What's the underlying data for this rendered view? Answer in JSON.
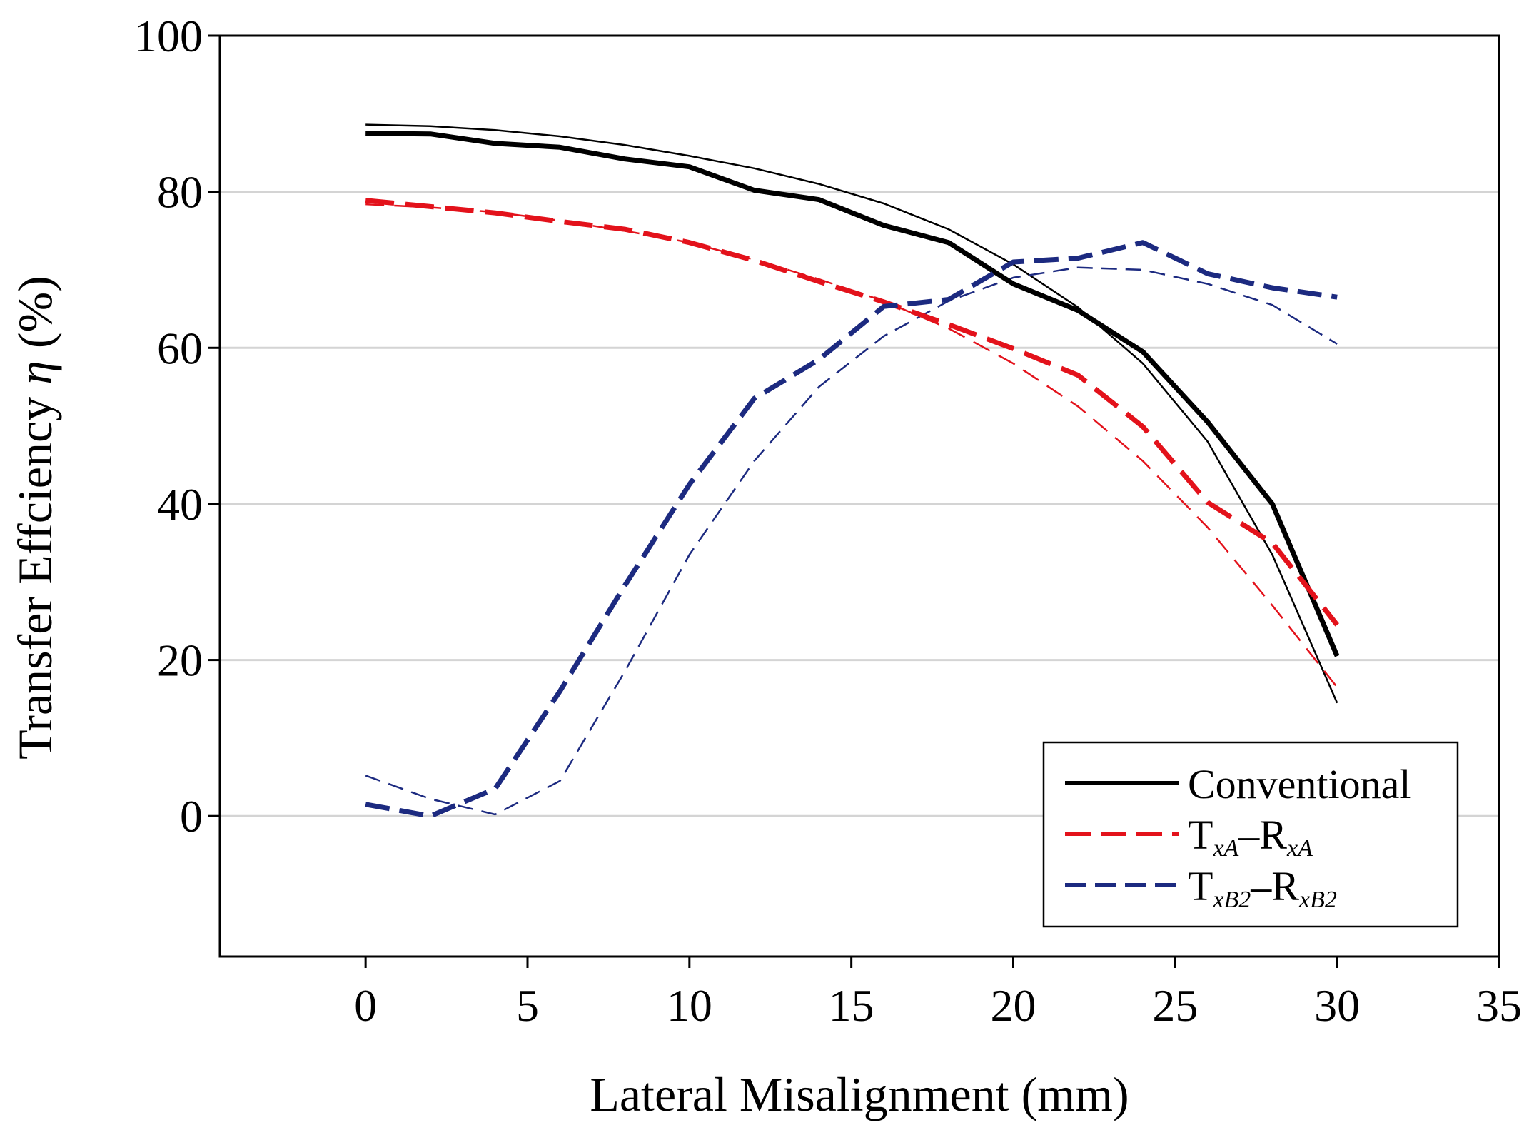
{
  "chart_data": {
    "type": "line",
    "title": "",
    "xlabel": "Lateral Misalignment (mm)",
    "ylabel_main": "Transfer Effciency ",
    "ylabel_symbol": "η",
    "ylabel_unit": " (%)",
    "xlim": [
      -4.5,
      35
    ],
    "ylim": [
      -18,
      100
    ],
    "xticks": [
      0,
      5,
      10,
      15,
      20,
      25,
      30,
      35
    ],
    "yticks": [
      0,
      20,
      40,
      60,
      80,
      100
    ],
    "grid": "horizontal",
    "legend_position": "bottom-right",
    "x": [
      0,
      2,
      4,
      6,
      8,
      10,
      12,
      14,
      16,
      18,
      20,
      22,
      24,
      26,
      28,
      30
    ],
    "series": [
      {
        "name": "Conventional",
        "legend": {
          "main": "Conventional"
        },
        "color": "#000000",
        "style": "solid",
        "values": [
          87.5,
          87.4,
          86.2,
          85.7,
          84.2,
          83.2,
          80.2,
          79.0,
          75.7,
          73.5,
          68.2,
          64.8,
          59.5,
          50.5,
          40.0,
          20.5
        ],
        "values_thin": [
          88.6,
          88.4,
          87.9,
          87.1,
          86.0,
          84.6,
          83.0,
          81.0,
          78.5,
          75.2,
          70.7,
          65.2,
          58.0,
          48.0,
          33.5,
          14.5
        ]
      },
      {
        "name": "TxA–RxA",
        "legend": {
          "t": "T",
          "t_sub": "xA",
          "dash": "–",
          "r": "R",
          "r_sub": "xA"
        },
        "color": "#e3121b",
        "style": "dashed",
        "values": [
          78.9,
          78.1,
          77.3,
          76.2,
          75.2,
          73.5,
          71.2,
          68.5,
          65.9,
          63.0,
          59.9,
          56.5,
          49.9,
          40.2,
          35.0,
          24.5
        ],
        "values_thin": [
          78.4,
          78.0,
          77.4,
          76.3,
          75.0,
          73.5,
          71.3,
          68.8,
          66.0,
          62.5,
          58.0,
          52.5,
          45.5,
          37.0,
          27.0,
          16.5
        ]
      },
      {
        "name": "TxB2–RxB2",
        "legend": {
          "t": "T",
          "t_sub": "xB2",
          "dash": "–",
          "r": "R",
          "r_sub": "xB2"
        },
        "color": "#1c2a80",
        "style": "dashed",
        "values": [
          1.5,
          0.0,
          3.5,
          16.0,
          29.5,
          42.5,
          53.5,
          58.5,
          65.3,
          66.2,
          71.0,
          71.5,
          73.5,
          69.5,
          67.7,
          66.5
        ],
        "values_thin": [
          5.2,
          2.2,
          0.2,
          4.5,
          18.5,
          33.5,
          45.5,
          55.0,
          61.5,
          66.0,
          69.0,
          70.3,
          70.0,
          68.2,
          65.5,
          60.5
        ]
      }
    ]
  }
}
